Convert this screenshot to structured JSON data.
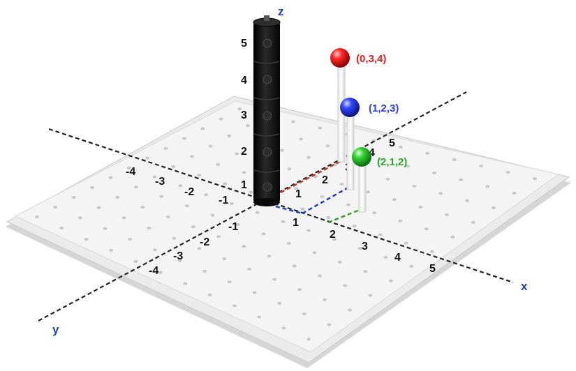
{
  "axes": {
    "x": {
      "name": "x",
      "ticks": [
        "1",
        "2",
        "3",
        "4",
        "5"
      ],
      "neg_ticks": [
        "-1",
        "-2",
        "-3",
        "-4"
      ]
    },
    "y": {
      "name": "y",
      "ticks": [
        "1",
        "2",
        "3",
        "4",
        "5"
      ],
      "neg_ticks": [
        "-1",
        "-2",
        "-3",
        "-4"
      ]
    },
    "z": {
      "name": "z",
      "ticks": [
        "1",
        "2",
        "3",
        "4",
        "5"
      ]
    },
    "axis_label_color": "#1f3fbf"
  },
  "points": [
    {
      "label": "(0,3,4)",
      "color": "#e31c1c"
    },
    {
      "label": "(1,2,3)",
      "color": "#2a3ee0"
    },
    {
      "label": "(2,1,2)",
      "color": "#2da82d"
    }
  ],
  "board": {
    "color": "#f4f4f4"
  },
  "column": {
    "color": "#141414"
  }
}
